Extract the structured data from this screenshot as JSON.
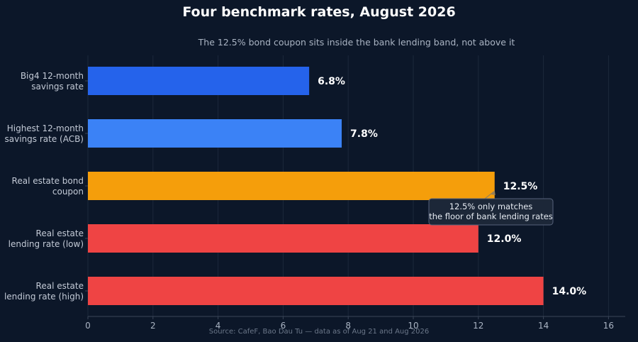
{
  "title": "Four benchmark rates, August 2026",
  "subtitle": "The 12.5% bond coupon sits inside the bank lending band, not above it",
  "source": "Source: CafeF, Bao Dau Tu — data as of Aug 21 and Aug 2026",
  "chart_data": {
    "type": "bar",
    "orientation": "horizontal",
    "categories": [
      [
        "Big4 12-month",
        "savings rate"
      ],
      [
        "Highest 12-month",
        "savings rate (ACB)"
      ],
      [
        "Real estate bond",
        "coupon"
      ],
      [
        "Real estate",
        "lending rate (low)"
      ],
      [
        "Real estate",
        "lending rate (high)"
      ]
    ],
    "values": [
      6.8,
      7.8,
      12.5,
      12.0,
      14.0
    ],
    "value_labels": [
      "6.8%",
      "7.8%",
      "12.5%",
      "12.0%",
      "14.0%"
    ],
    "colors": [
      "#2563eb",
      "#3b82f6",
      "#f59e0b",
      "#ef4444",
      "#ef4444"
    ],
    "xlim": [
      0,
      16.5
    ],
    "xticks": [
      0,
      2,
      4,
      6,
      8,
      10,
      12,
      14,
      16
    ],
    "xtick_labels": [
      "0",
      "2",
      "4",
      "6",
      "8",
      "10",
      "12",
      "14",
      "16"
    ],
    "grid": "vertical",
    "annotation": {
      "lines": [
        "12.5% only matches",
        "the floor of bank lending rates"
      ],
      "points_to_value": 12.5,
      "points_to_category_index": 2
    }
  },
  "theme": {
    "background": "#0c1729",
    "grid": "#1c283b",
    "axis": "#3a4558",
    "annotation_box": "#1c2738",
    "annotation_border": "#56627a",
    "arrow": "#9a8055"
  }
}
